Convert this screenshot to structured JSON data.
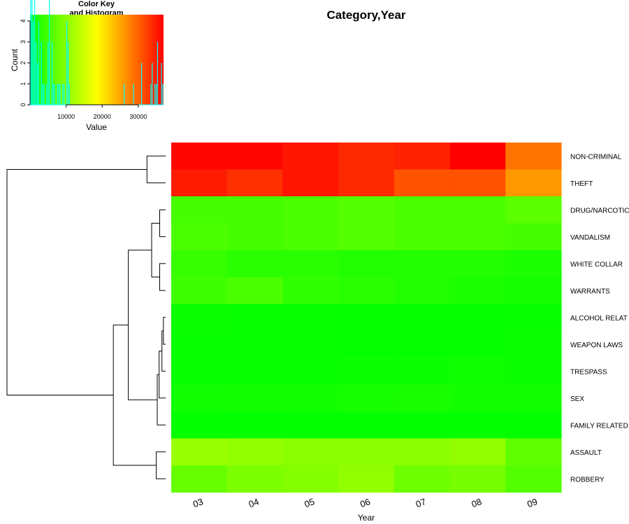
{
  "chart_data": {
    "type": "heatmap",
    "title": "Category,Year",
    "xlabel": "Year",
    "x_categories": [
      "03",
      "04",
      "05",
      "06",
      "07",
      "08",
      "09"
    ],
    "row_order": [
      "NON-CRIMINAL",
      "THEFT",
      "DRUG/NARCOTIC",
      "VANDALISM",
      "WHITE COLLAR",
      "WARRANTS",
      "ALCOHOL RELATED",
      "WEAPON LAWS",
      "TRESPASS",
      "SEX",
      "FAMILY RELATED",
      "ASSAULT",
      "ROBBERY"
    ],
    "row_labels_visible": [
      "NON-CRIMINAL",
      "THEFT",
      "DRUG/NARCOTIC",
      "VANDALISM",
      "WHITE COLLAR",
      "WARRANTS",
      "ALCOHOL RELAT",
      "WEAPON LAWS",
      "TRESPASS",
      "SEX",
      "FAMILY RELATED",
      "ASSAULT",
      "ROBBERY"
    ],
    "values": [
      [
        36500,
        36500,
        35500,
        34000,
        34500,
        37000,
        28500
      ],
      [
        35000,
        33500,
        35500,
        34000,
        31000,
        31000,
        26000
      ],
      [
        5000,
        5000,
        5500,
        6000,
        5500,
        5500,
        6500
      ],
      [
        5500,
        5000,
        5500,
        6000,
        5500,
        5500,
        5000
      ],
      [
        4000,
        3000,
        3000,
        2500,
        2500,
        2500,
        2000
      ],
      [
        4500,
        5500,
        3500,
        3000,
        2500,
        2000,
        1500
      ],
      [
        800,
        600,
        500,
        400,
        400,
        400,
        600
      ],
      [
        600,
        500,
        500,
        400,
        400,
        400,
        800
      ],
      [
        500,
        600,
        600,
        800,
        900,
        1000,
        900
      ],
      [
        1200,
        1400,
        1300,
        1600,
        1800,
        1400,
        1300
      ],
      [
        300,
        300,
        300,
        300,
        300,
        300,
        300
      ],
      [
        11000,
        10500,
        10000,
        10000,
        10000,
        10500,
        7000
      ],
      [
        7500,
        9000,
        9500,
        10500,
        8000,
        8500,
        6000
      ]
    ],
    "value_range": [
      0,
      37000
    ],
    "color_scale": [
      "#00ff00",
      "#ffff00",
      "#ff0000"
    ],
    "dendrogram": {
      "leaves": [
        "NON-CRIMINAL",
        "THEFT",
        "DRUG/NARCOTIC",
        "VANDALISM",
        "WHITE COLLAR",
        "WARRANTS",
        "ALCOHOL RELATED",
        "WEAPON LAWS",
        "TRESPASS",
        "SEX",
        "FAMILY RELATED",
        "ASSAULT",
        "ROBBERY"
      ],
      "merges": [
        {
          "a": 6,
          "b": 7,
          "height": 1200
        },
        {
          "a": -1,
          "b": 8,
          "height": 2000
        },
        {
          "a": -2,
          "b": 9,
          "height": 3500
        },
        {
          "a": -3,
          "b": 10,
          "height": 4500
        },
        {
          "a": 2,
          "b": 3,
          "height": 3200
        },
        {
          "a": 4,
          "b": 5,
          "height": 3200
        },
        {
          "a": -5,
          "b": -6,
          "height": 7500
        },
        {
          "a": -7,
          "b": -4,
          "height": 20000
        },
        {
          "a": 11,
          "b": 12,
          "height": 5000
        },
        {
          "a": -8,
          "b": -9,
          "height": 28000
        },
        {
          "a": 0,
          "b": 1,
          "height": 10000
        },
        {
          "a": -11,
          "b": -10,
          "height": 85000
        }
      ]
    },
    "color_key": {
      "title_line1": "Color Key",
      "title_line2": "and Histogram",
      "xlabel": "Value",
      "ylabel": "Count",
      "x_ticks": [
        10000,
        20000,
        30000
      ],
      "y_ticks": [
        0,
        1,
        2,
        3,
        4
      ],
      "histogram_values": [
        250,
        300,
        300,
        300,
        300,
        300,
        300,
        300,
        400,
        400,
        400,
        400,
        400,
        400,
        500,
        500,
        500,
        500,
        500,
        600,
        600,
        600,
        600,
        800,
        800,
        900,
        1000,
        1200,
        1300,
        1300,
        1400,
        1400,
        1500,
        1600,
        1800,
        2000,
        2000,
        2500,
        2500,
        2500,
        2500,
        3000,
        3000,
        3000,
        3500,
        4000,
        4500,
        5000,
        5000,
        5000,
        5500,
        5500,
        5500,
        5500,
        5500,
        5500,
        6000,
        6000,
        6000,
        6500,
        7000,
        7500,
        8000,
        8500,
        9000,
        9500,
        10000,
        10000,
        10000,
        10000,
        10500,
        10500,
        10500,
        11000,
        26000,
        28500,
        31000,
        31000,
        33500,
        34000,
        34000,
        34500,
        35000,
        35500,
        35500,
        35500,
        36500,
        36500,
        37000
      ]
    }
  }
}
